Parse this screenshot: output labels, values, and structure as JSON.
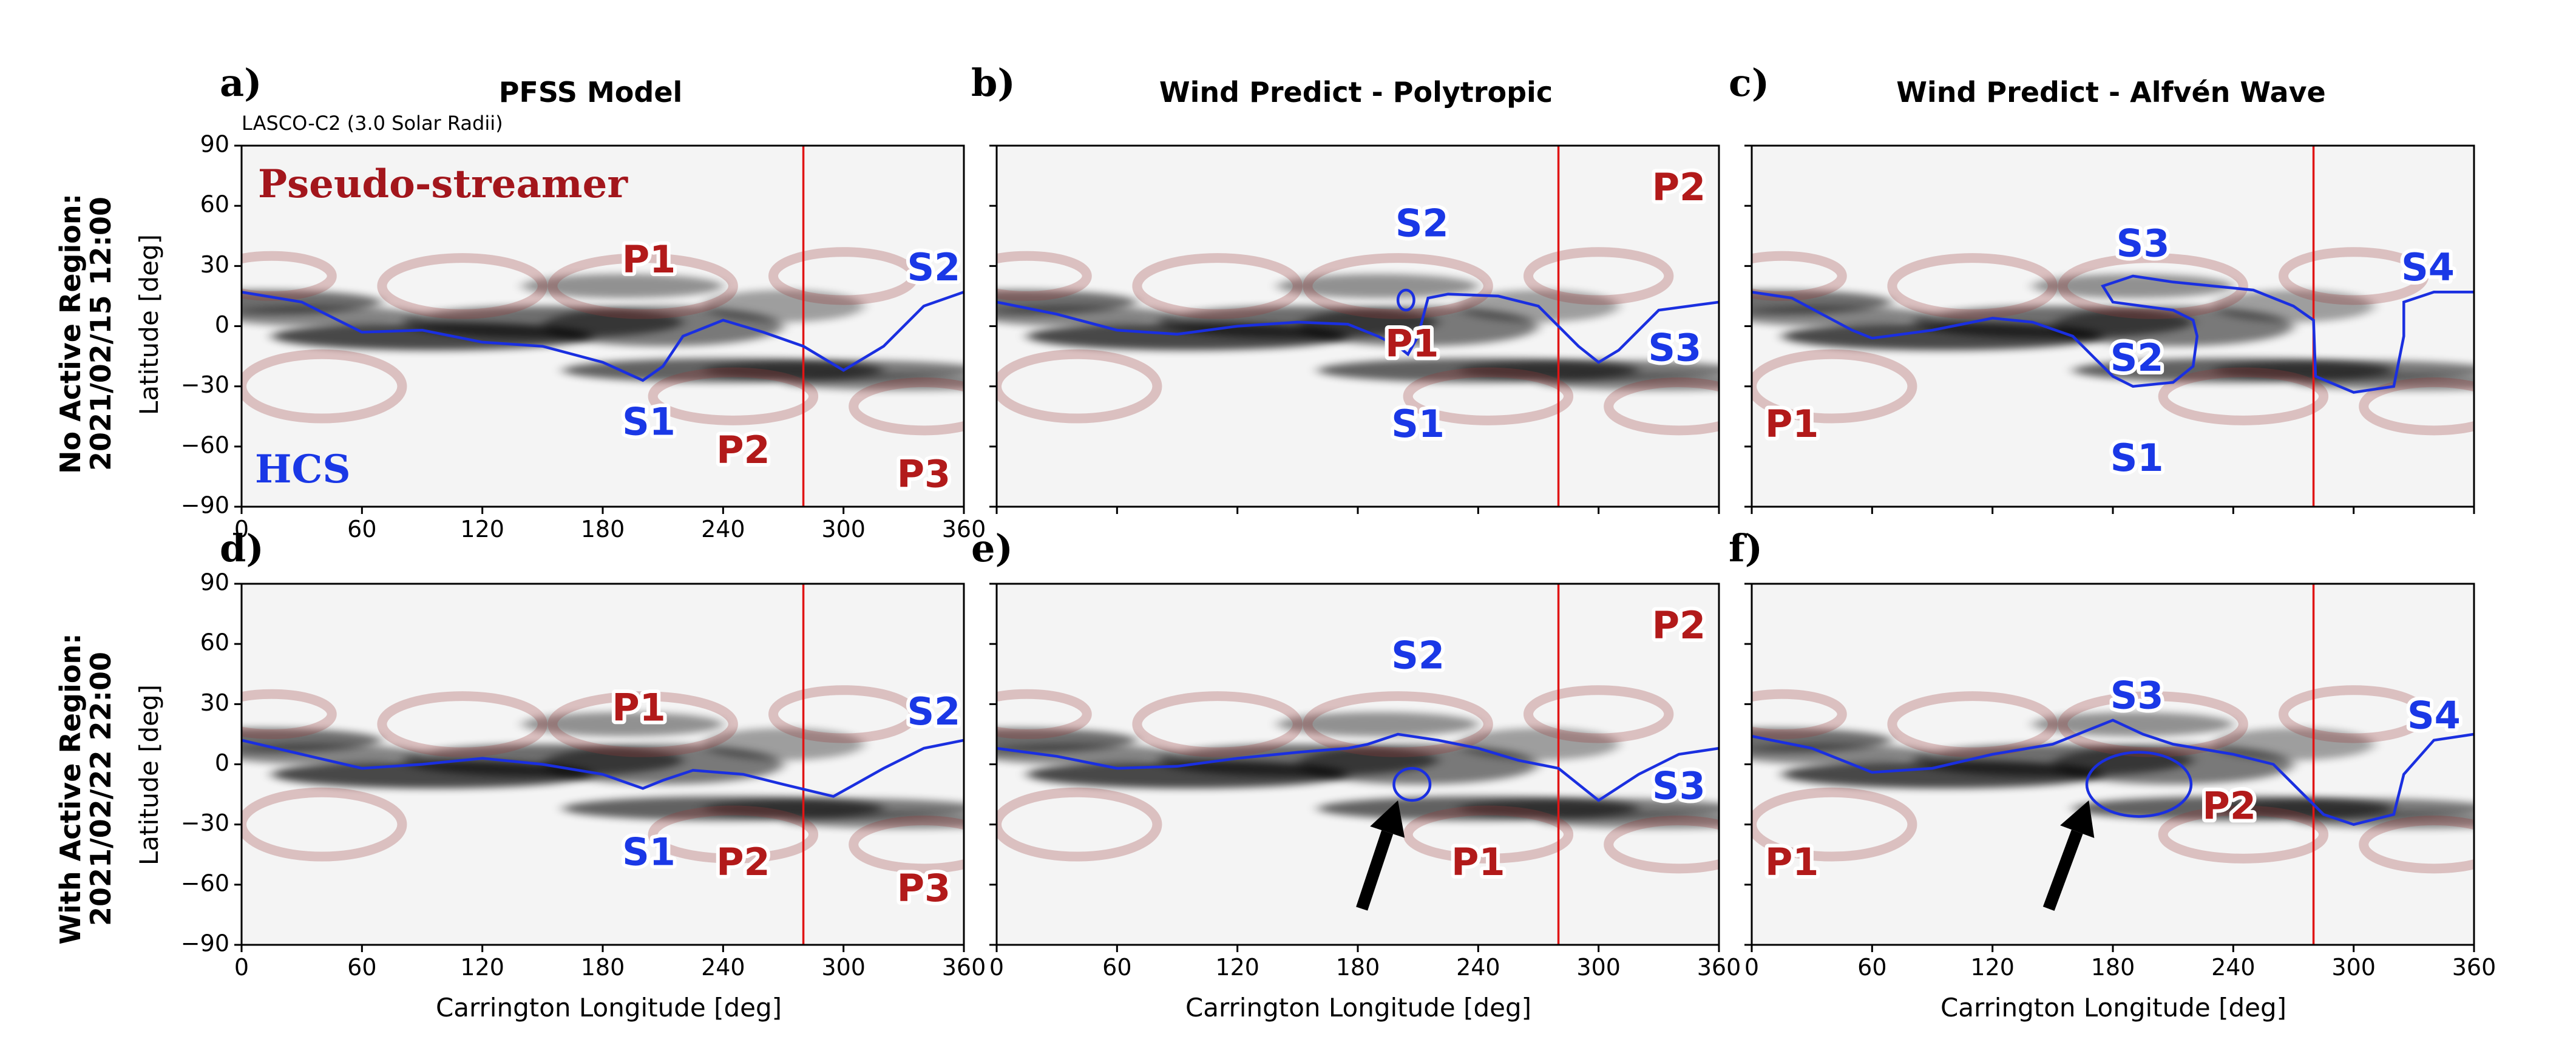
{
  "chart_data": [
    {
      "id": "a",
      "type": "heatmap",
      "letter": "a)",
      "title": "PFSS Model",
      "note": "LASCO-C2 (3.0 Solar Radii)",
      "row_label": [
        "No Active Region:",
        "2021/02/15 12:00"
      ],
      "xlabel": "Carrington Longitude [deg]",
      "ylabel": "Latitude [deg]",
      "xlim": [
        0,
        360
      ],
      "ylim": [
        -90,
        90
      ],
      "xticks": [
        "0",
        "60",
        "120",
        "180",
        "240",
        "300",
        "360"
      ],
      "yticks": [
        "90",
        "60",
        "30",
        "0",
        "−30",
        "−60",
        "−90"
      ],
      "vline_lon": 280,
      "legend": {
        "pseudo": "Pseudo-streamer",
        "hcs": "HCS"
      },
      "hcs": [
        [
          0,
          17
        ],
        [
          30,
          12
        ],
        [
          60,
          -3
        ],
        [
          90,
          -2
        ],
        [
          120,
          -8
        ],
        [
          150,
          -10
        ],
        [
          180,
          -18
        ],
        [
          200,
          -27
        ],
        [
          210,
          -20
        ],
        [
          220,
          -5
        ],
        [
          240,
          3
        ],
        [
          260,
          -3
        ],
        [
          280,
          -10
        ],
        [
          300,
          -22
        ],
        [
          320,
          -10
        ],
        [
          340,
          10
        ],
        [
          360,
          17
        ]
      ],
      "annotations": [
        {
          "text": "P1",
          "lon": 203,
          "lat": 32,
          "color": "red"
        },
        {
          "text": "S2",
          "lon": 345,
          "lat": 28,
          "color": "blue"
        },
        {
          "text": "S1",
          "lon": 203,
          "lat": -49,
          "color": "blue"
        },
        {
          "text": "P2",
          "lon": 250,
          "lat": -63,
          "color": "red"
        },
        {
          "text": "P3",
          "lon": 340,
          "lat": -75,
          "color": "red"
        }
      ]
    },
    {
      "id": "b",
      "type": "heatmap",
      "letter": "b)",
      "title": "Wind Predict - Polytropic",
      "xlabel": "",
      "ylabel": "",
      "xlim": [
        0,
        360
      ],
      "ylim": [
        -90,
        90
      ],
      "vline_lon": 280,
      "hcs": [
        [
          0,
          12
        ],
        [
          30,
          6
        ],
        [
          60,
          -2
        ],
        [
          90,
          -4
        ],
        [
          120,
          0
        ],
        [
          150,
          2
        ],
        [
          175,
          1
        ],
        [
          190,
          -5
        ],
        [
          200,
          -10
        ],
        [
          205,
          -14
        ],
        [
          210,
          -5
        ],
        [
          215,
          14
        ],
        [
          225,
          16
        ],
        [
          250,
          15
        ],
        [
          270,
          10
        ],
        [
          290,
          -10
        ],
        [
          300,
          -18
        ],
        [
          310,
          -12
        ],
        [
          330,
          8
        ],
        [
          360,
          12
        ]
      ],
      "hcs_loop": {
        "lon": 204,
        "lat": 13,
        "rlon": 4,
        "rlat": 5
      },
      "annotations": [
        {
          "text": "S2",
          "lon": 212,
          "lat": 50,
          "color": "blue"
        },
        {
          "text": "P2",
          "lon": 340,
          "lat": 68,
          "color": "red"
        },
        {
          "text": "P1",
          "lon": 207,
          "lat": -10,
          "color": "red"
        },
        {
          "text": "S3",
          "lon": 338,
          "lat": -12,
          "color": "blue"
        },
        {
          "text": "S1",
          "lon": 210,
          "lat": -50,
          "color": "blue"
        }
      ]
    },
    {
      "id": "c",
      "type": "heatmap",
      "letter": "c)",
      "title": "Wind Predict - Alfvén Wave",
      "xlabel": "",
      "ylabel": "",
      "xlim": [
        0,
        360
      ],
      "ylim": [
        -90,
        90
      ],
      "vline_lon": 280,
      "hcs": [
        [
          0,
          17
        ],
        [
          20,
          14
        ],
        [
          50,
          -2
        ],
        [
          60,
          -6
        ],
        [
          90,
          -2
        ],
        [
          120,
          4
        ],
        [
          140,
          2
        ],
        [
          160,
          -5
        ],
        [
          170,
          -15
        ],
        [
          180,
          -25
        ],
        [
          190,
          -30
        ],
        [
          210,
          -28
        ],
        [
          220,
          -20
        ],
        [
          222,
          -5
        ],
        [
          220,
          3
        ],
        [
          210,
          8
        ],
        [
          180,
          12
        ],
        [
          175,
          20
        ],
        [
          190,
          25
        ],
        [
          210,
          22
        ],
        [
          230,
          20
        ],
        [
          250,
          18
        ],
        [
          270,
          10
        ],
        [
          280,
          3
        ],
        [
          281,
          -25
        ],
        [
          300,
          -33
        ],
        [
          320,
          -30
        ],
        [
          325,
          -5
        ],
        [
          325,
          12
        ],
        [
          340,
          17
        ],
        [
          360,
          17
        ]
      ],
      "annotations": [
        {
          "text": "S3",
          "lon": 195,
          "lat": 40,
          "color": "blue"
        },
        {
          "text": "S4",
          "lon": 337,
          "lat": 28,
          "color": "blue"
        },
        {
          "text": "S2",
          "lon": 192,
          "lat": -17,
          "color": "blue"
        },
        {
          "text": "P1",
          "lon": 20,
          "lat": -50,
          "color": "red"
        },
        {
          "text": "S1",
          "lon": 192,
          "lat": -67,
          "color": "blue"
        }
      ]
    },
    {
      "id": "d",
      "type": "heatmap",
      "letter": "d)",
      "title": "",
      "row_label": [
        "With Active Region:",
        "2021/02/22 22:00"
      ],
      "xlabel": "Carrington Longitude [deg]",
      "ylabel": "Latitude [deg]",
      "xlim": [
        0,
        360
      ],
      "ylim": [
        -90,
        90
      ],
      "xticks": [
        "0",
        "60",
        "120",
        "180",
        "240",
        "300",
        "360"
      ],
      "yticks": [
        "90",
        "60",
        "30",
        "0",
        "−30",
        "−60",
        "−90"
      ],
      "vline_lon": 280,
      "hcs": [
        [
          0,
          12
        ],
        [
          30,
          5
        ],
        [
          60,
          -2
        ],
        [
          90,
          0
        ],
        [
          120,
          3
        ],
        [
          150,
          0
        ],
        [
          180,
          -5
        ],
        [
          200,
          -12
        ],
        [
          210,
          -8
        ],
        [
          225,
          -3
        ],
        [
          250,
          -5
        ],
        [
          270,
          -10
        ],
        [
          295,
          -16
        ],
        [
          320,
          -2
        ],
        [
          340,
          8
        ],
        [
          360,
          12
        ]
      ],
      "annotations": [
        {
          "text": "P1",
          "lon": 198,
          "lat": 27,
          "color": "red"
        },
        {
          "text": "S2",
          "lon": 345,
          "lat": 25,
          "color": "blue"
        },
        {
          "text": "S1",
          "lon": 203,
          "lat": -45,
          "color": "blue"
        },
        {
          "text": "P2",
          "lon": 250,
          "lat": -50,
          "color": "red"
        },
        {
          "text": "P3",
          "lon": 340,
          "lat": -63,
          "color": "red"
        }
      ]
    },
    {
      "id": "e",
      "type": "heatmap",
      "letter": "e)",
      "title": "",
      "xlabel": "Carrington Longitude [deg]",
      "ylabel": "",
      "xlim": [
        0,
        360
      ],
      "ylim": [
        -90,
        90
      ],
      "xticks": [
        "0",
        "60",
        "120",
        "180",
        "240",
        "300",
        "360"
      ],
      "vline_lon": 280,
      "hcs": [
        [
          0,
          8
        ],
        [
          30,
          4
        ],
        [
          60,
          -2
        ],
        [
          90,
          -1
        ],
        [
          120,
          3
        ],
        [
          150,
          6
        ],
        [
          175,
          8
        ],
        [
          185,
          10
        ],
        [
          200,
          15
        ],
        [
          220,
          12
        ],
        [
          240,
          8
        ],
        [
          260,
          2
        ],
        [
          280,
          -2
        ],
        [
          300,
          -18
        ],
        [
          320,
          -5
        ],
        [
          340,
          5
        ],
        [
          360,
          8
        ]
      ],
      "hcs_loop": {
        "lon": 207,
        "lat": -10,
        "rlon": 9,
        "rlat": 8
      },
      "arrow": {
        "lon_tail": 182,
        "lat_tail": -72,
        "lon_head": 200,
        "lat_head": -18
      },
      "annotations": [
        {
          "text": "S2",
          "lon": 210,
          "lat": 53,
          "color": "blue"
        },
        {
          "text": "P2",
          "lon": 340,
          "lat": 68,
          "color": "red"
        },
        {
          "text": "S3",
          "lon": 340,
          "lat": -12,
          "color": "blue"
        },
        {
          "text": "P1",
          "lon": 240,
          "lat": -50,
          "color": "red"
        }
      ]
    },
    {
      "id": "f",
      "type": "heatmap",
      "letter": "f)",
      "title": "",
      "xlabel": "Carrington Longitude [deg]",
      "ylabel": "",
      "xlim": [
        0,
        360
      ],
      "ylim": [
        -90,
        90
      ],
      "xticks": [
        "0",
        "60",
        "120",
        "180",
        "240",
        "300",
        "360"
      ],
      "vline_lon": 280,
      "hcs": [
        [
          0,
          14
        ],
        [
          30,
          8
        ],
        [
          60,
          -4
        ],
        [
          90,
          -2
        ],
        [
          120,
          5
        ],
        [
          150,
          10
        ],
        [
          160,
          14
        ],
        [
          180,
          22
        ],
        [
          195,
          15
        ],
        [
          210,
          10
        ],
        [
          240,
          5
        ],
        [
          260,
          0
        ],
        [
          275,
          -15
        ],
        [
          285,
          -25
        ],
        [
          300,
          -30
        ],
        [
          320,
          -25
        ],
        [
          325,
          -5
        ],
        [
          340,
          12
        ],
        [
          360,
          15
        ]
      ],
      "hcs_loop": {
        "lon": 193,
        "lat": -10,
        "rlon": 26,
        "rlat": 16
      },
      "arrow": {
        "lon_tail": 148,
        "lat_tail": -72,
        "lon_head": 168,
        "lat_head": -18
      },
      "annotations": [
        {
          "text": "S3",
          "lon": 192,
          "lat": 33,
          "color": "blue"
        },
        {
          "text": "S4",
          "lon": 340,
          "lat": 23,
          "color": "blue"
        },
        {
          "text": "P2",
          "lon": 238,
          "lat": -22,
          "color": "red"
        },
        {
          "text": "P1",
          "lon": 20,
          "lat": -50,
          "color": "red"
        }
      ]
    }
  ]
}
